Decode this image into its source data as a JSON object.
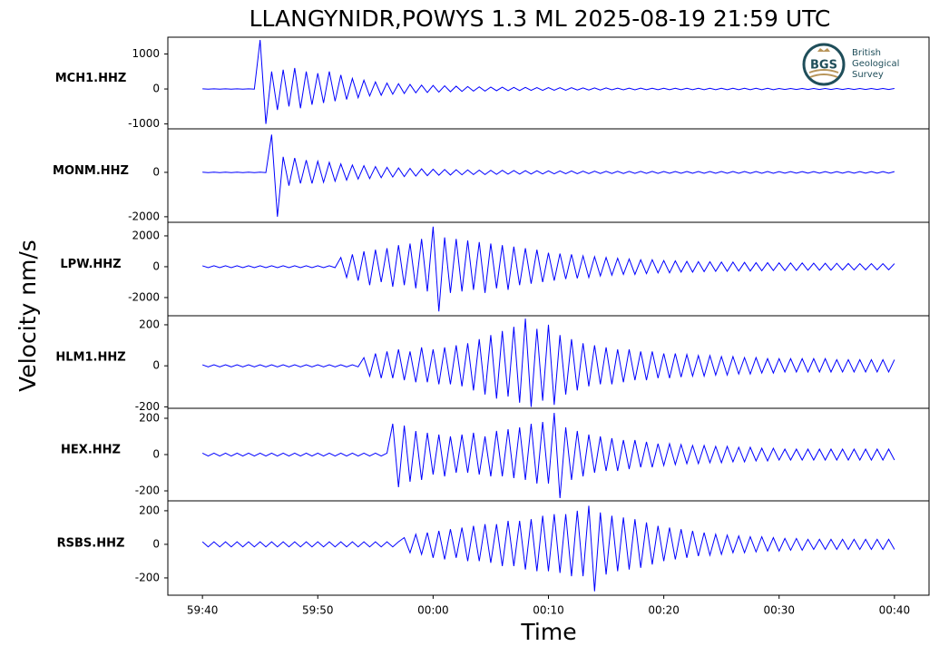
{
  "logo": {
    "abbr": "BGS",
    "lines": [
      "British",
      "Geological",
      "Survey"
    ]
  },
  "chart_data": {
    "type": "line",
    "title": "LLANGYNIDR,POWYS 1.3 ML   2025-08-19 21:59 UTC",
    "x_label": "Time",
    "y_label": "Velocity nm/s",
    "xlim": [
      -23,
      43
    ],
    "xticks": [
      {
        "value": -20,
        "label": "59:40"
      },
      {
        "value": -10,
        "label": "59:50"
      },
      {
        "value": 0,
        "label": "00:00"
      },
      {
        "value": 10,
        "label": "00:10"
      },
      {
        "value": 20,
        "label": "00:20"
      },
      {
        "value": 30,
        "label": "00:30"
      },
      {
        "value": 40,
        "label": "00:40"
      }
    ],
    "x": [
      -20,
      -19.5,
      -19,
      -18.5,
      -18,
      -17.5,
      -17,
      -16.5,
      -16,
      -15.5,
      -15,
      -14.5,
      -14,
      -13.5,
      -13,
      -12.5,
      -12,
      -11.5,
      -11,
      -10.5,
      -10,
      -9.5,
      -9,
      -8.5,
      -8,
      -7.5,
      -7,
      -6.5,
      -6,
      -5.5,
      -5,
      -4.5,
      -4,
      -3.5,
      -3,
      -2.5,
      -2,
      -1.5,
      -1,
      -0.5,
      0,
      0.5,
      1,
      1.5,
      2,
      2.5,
      3,
      3.5,
      4,
      4.5,
      5,
      5.5,
      6,
      6.5,
      7,
      7.5,
      8,
      8.5,
      9,
      9.5,
      10,
      10.5,
      11,
      11.5,
      12,
      12.5,
      13,
      13.5,
      14,
      14.5,
      15,
      15.5,
      16,
      16.5,
      17,
      17.5,
      18,
      18.5,
      19,
      19.5,
      20,
      20.5,
      21,
      21.5,
      22,
      22.5,
      23,
      23.5,
      24,
      24.5,
      25,
      25.5,
      26,
      26.5,
      27,
      27.5,
      28,
      28.5,
      29,
      29.5,
      30,
      30.5,
      31,
      31.5,
      32,
      32.5,
      33,
      33.5,
      34,
      34.5,
      35,
      35.5,
      36,
      36.5,
      37,
      37.5,
      38,
      38.5,
      39,
      39.5,
      40
    ],
    "series": [
      {
        "name": "MCH1.HHZ",
        "color": "#0000ff",
        "ylim": [
          -1140,
          1480
        ],
        "yticks": [
          -1000,
          0,
          1000
        ],
        "values": [
          5,
          -5,
          5,
          -5,
          5,
          -5,
          5,
          -5,
          5,
          -5,
          1400,
          -1000,
          500,
          -600,
          550,
          -500,
          600,
          -550,
          500,
          -450,
          450,
          -400,
          500,
          -350,
          400,
          -300,
          300,
          -250,
          250,
          -200,
          200,
          -180,
          170,
          -150,
          150,
          -130,
          130,
          -110,
          110,
          -100,
          100,
          -90,
          90,
          -80,
          80,
          -70,
          70,
          -60,
          60,
          -60,
          55,
          -50,
          50,
          -50,
          45,
          -45,
          45,
          -40,
          40,
          -40,
          40,
          -35,
          35,
          -35,
          35,
          -30,
          30,
          -30,
          30,
          -30,
          30,
          -25,
          25,
          -25,
          25,
          -25,
          25,
          -20,
          20,
          -20,
          20,
          -20,
          20,
          -20,
          20,
          -20,
          20,
          -20,
          20,
          -20,
          20,
          -20,
          20,
          -20,
          20,
          -20,
          20,
          -20,
          20,
          -20,
          15,
          -15,
          15,
          -15,
          15,
          -15,
          15,
          -15,
          15,
          -15,
          15,
          -15,
          15,
          -15,
          15,
          -15,
          15,
          -15,
          15,
          -15,
          15
        ]
      },
      {
        "name": "MONM.HHZ",
        "color": "#0000ff",
        "ylim": [
          -2250,
          1960
        ],
        "yticks": [
          -2000,
          0
        ],
        "values": [
          10,
          -10,
          10,
          -10,
          10,
          -10,
          10,
          -10,
          10,
          -10,
          10,
          -10,
          1700,
          -2000,
          700,
          -600,
          650,
          -500,
          550,
          -500,
          500,
          -450,
          450,
          -400,
          380,
          -350,
          330,
          -300,
          300,
          -280,
          260,
          -240,
          230,
          -210,
          200,
          -190,
          180,
          -170,
          160,
          -150,
          140,
          -130,
          130,
          -120,
          120,
          -110,
          110,
          -100,
          100,
          -100,
          90,
          -90,
          90,
          -80,
          80,
          -80,
          75,
          -75,
          70,
          -70,
          65,
          -65,
          60,
          -60,
          60,
          -60,
          55,
          -55,
          55,
          -50,
          50,
          -50,
          50,
          -50,
          45,
          -45,
          45,
          -45,
          45,
          -45,
          40,
          -40,
          40,
          -40,
          40,
          -40,
          40,
          -40,
          40,
          -40,
          40,
          -40,
          40,
          -40,
          40,
          -40,
          40,
          -40,
          40,
          -40,
          35,
          -35,
          35,
          -35,
          35,
          -35,
          35,
          -35,
          35,
          -35,
          35,
          -35,
          35,
          -35,
          35,
          -35,
          35,
          -35,
          35,
          -35,
          35
        ]
      },
      {
        "name": "LPW.HHZ",
        "color": "#0000ff",
        "ylim": [
          -3180,
          2880
        ],
        "yticks": [
          -2000,
          0,
          2000
        ],
        "values": [
          60,
          -60,
          60,
          -60,
          60,
          -60,
          60,
          -60,
          60,
          -60,
          60,
          -60,
          60,
          -60,
          60,
          -60,
          60,
          -60,
          60,
          -60,
          60,
          -60,
          60,
          -60,
          600,
          -700,
          800,
          -900,
          1000,
          -1200,
          1100,
          -1000,
          1200,
          -1300,
          1400,
          -1200,
          1500,
          -1400,
          1800,
          -1600,
          2600,
          -2900,
          1900,
          -1700,
          1800,
          -1600,
          1700,
          -1500,
          1600,
          -1700,
          1500,
          -1400,
          1400,
          -1500,
          1300,
          -1200,
          1200,
          -1100,
          1100,
          -1000,
          900,
          -900,
          850,
          -800,
          800,
          -750,
          700,
          -700,
          650,
          -600,
          600,
          -550,
          550,
          -500,
          500,
          -500,
          450,
          -450,
          450,
          -400,
          400,
          -400,
          380,
          -350,
          350,
          -350,
          330,
          -320,
          320,
          -300,
          300,
          -300,
          300,
          -280,
          280,
          -280,
          260,
          -260,
          260,
          -250,
          250,
          -250,
          240,
          -240,
          240,
          -230,
          230,
          -230,
          220,
          -220,
          220,
          -210,
          210,
          -210,
          200,
          -200,
          200,
          -200,
          200,
          -200,
          200
        ]
      },
      {
        "name": "HLM1.HHZ",
        "color": "#0000ff",
        "ylim": [
          -207,
          244
        ],
        "yticks": [
          -200,
          0,
          200
        ],
        "values": [
          5,
          -5,
          5,
          -5,
          5,
          -5,
          5,
          -5,
          5,
          -5,
          5,
          -5,
          5,
          -5,
          5,
          -5,
          5,
          -5,
          5,
          -5,
          5,
          -5,
          5,
          -5,
          5,
          -5,
          5,
          -5,
          40,
          -50,
          60,
          -60,
          70,
          -60,
          80,
          -70,
          70,
          -80,
          90,
          -80,
          80,
          -90,
          90,
          -90,
          100,
          -100,
          110,
          -120,
          130,
          -140,
          150,
          -160,
          170,
          -150,
          190,
          -180,
          230,
          -200,
          180,
          -170,
          200,
          -190,
          150,
          -140,
          130,
          -120,
          110,
          -100,
          100,
          -90,
          90,
          -90,
          80,
          -80,
          80,
          -70,
          70,
          -70,
          70,
          -60,
          60,
          -60,
          60,
          -55,
          55,
          -50,
          50,
          -50,
          50,
          -45,
          45,
          -45,
          45,
          -40,
          40,
          -40,
          40,
          -35,
          35,
          -35,
          35,
          -30,
          35,
          -30,
          35,
          -30,
          35,
          -30,
          35,
          -30,
          30,
          -30,
          30,
          -30,
          30,
          -30,
          30,
          -30,
          30,
          -30,
          30
        ]
      },
      {
        "name": "HEX.HHZ",
        "color": "#0000ff",
        "ylim": [
          -255,
          255
        ],
        "yticks": [
          -200,
          0,
          200
        ],
        "values": [
          8,
          -8,
          8,
          -8,
          8,
          -8,
          8,
          -8,
          8,
          -8,
          8,
          -8,
          8,
          -8,
          8,
          -8,
          8,
          -8,
          8,
          -8,
          8,
          -8,
          8,
          -8,
          8,
          -8,
          8,
          -8,
          8,
          -8,
          8,
          -8,
          8,
          170,
          -180,
          160,
          -150,
          130,
          -140,
          120,
          -110,
          110,
          -120,
          100,
          -100,
          110,
          -100,
          120,
          -110,
          100,
          -120,
          130,
          -120,
          140,
          -130,
          150,
          -140,
          170,
          -160,
          180,
          -160,
          230,
          -240,
          150,
          -140,
          130,
          -120,
          110,
          -100,
          100,
          -90,
          90,
          -90,
          80,
          -80,
          80,
          -70,
          70,
          -70,
          60,
          -60,
          60,
          -55,
          55,
          -50,
          50,
          -50,
          50,
          -45,
          45,
          -45,
          45,
          -40,
          40,
          -40,
          40,
          -35,
          35,
          -35,
          35,
          -30,
          30,
          -30,
          30,
          -30,
          30,
          -30,
          30,
          -30,
          30,
          -30,
          30,
          -30,
          30,
          -30,
          30,
          -30,
          30,
          -30,
          30,
          -30
        ]
      },
      {
        "name": "RSBS.HHZ",
        "color": "#0000ff",
        "ylim": [
          -303,
          259
        ],
        "yticks": [
          -200,
          0,
          200
        ],
        "values": [
          15,
          -15,
          15,
          -15,
          15,
          -15,
          15,
          -15,
          15,
          -15,
          15,
          -15,
          15,
          -15,
          15,
          -15,
          15,
          -15,
          15,
          -15,
          15,
          -15,
          15,
          -15,
          15,
          -15,
          15,
          -15,
          15,
          -15,
          15,
          -15,
          15,
          -15,
          15,
          40,
          -50,
          60,
          -60,
          70,
          -80,
          80,
          -90,
          90,
          -80,
          100,
          -100,
          110,
          -100,
          120,
          -110,
          120,
          -130,
          140,
          -130,
          140,
          -150,
          150,
          -160,
          170,
          -160,
          180,
          -170,
          180,
          -190,
          200,
          -190,
          230,
          -280,
          190,
          -180,
          170,
          -160,
          160,
          -150,
          150,
          -140,
          130,
          -120,
          110,
          -100,
          100,
          -90,
          90,
          -80,
          80,
          -70,
          70,
          -65,
          60,
          -60,
          55,
          -50,
          50,
          -50,
          45,
          -45,
          45,
          -40,
          40,
          -40,
          35,
          -35,
          35,
          -35,
          30,
          -30,
          30,
          -30,
          30,
          -30,
          30,
          -30,
          30,
          -30,
          30,
          -30,
          30,
          -30,
          30,
          -30
        ]
      }
    ]
  }
}
